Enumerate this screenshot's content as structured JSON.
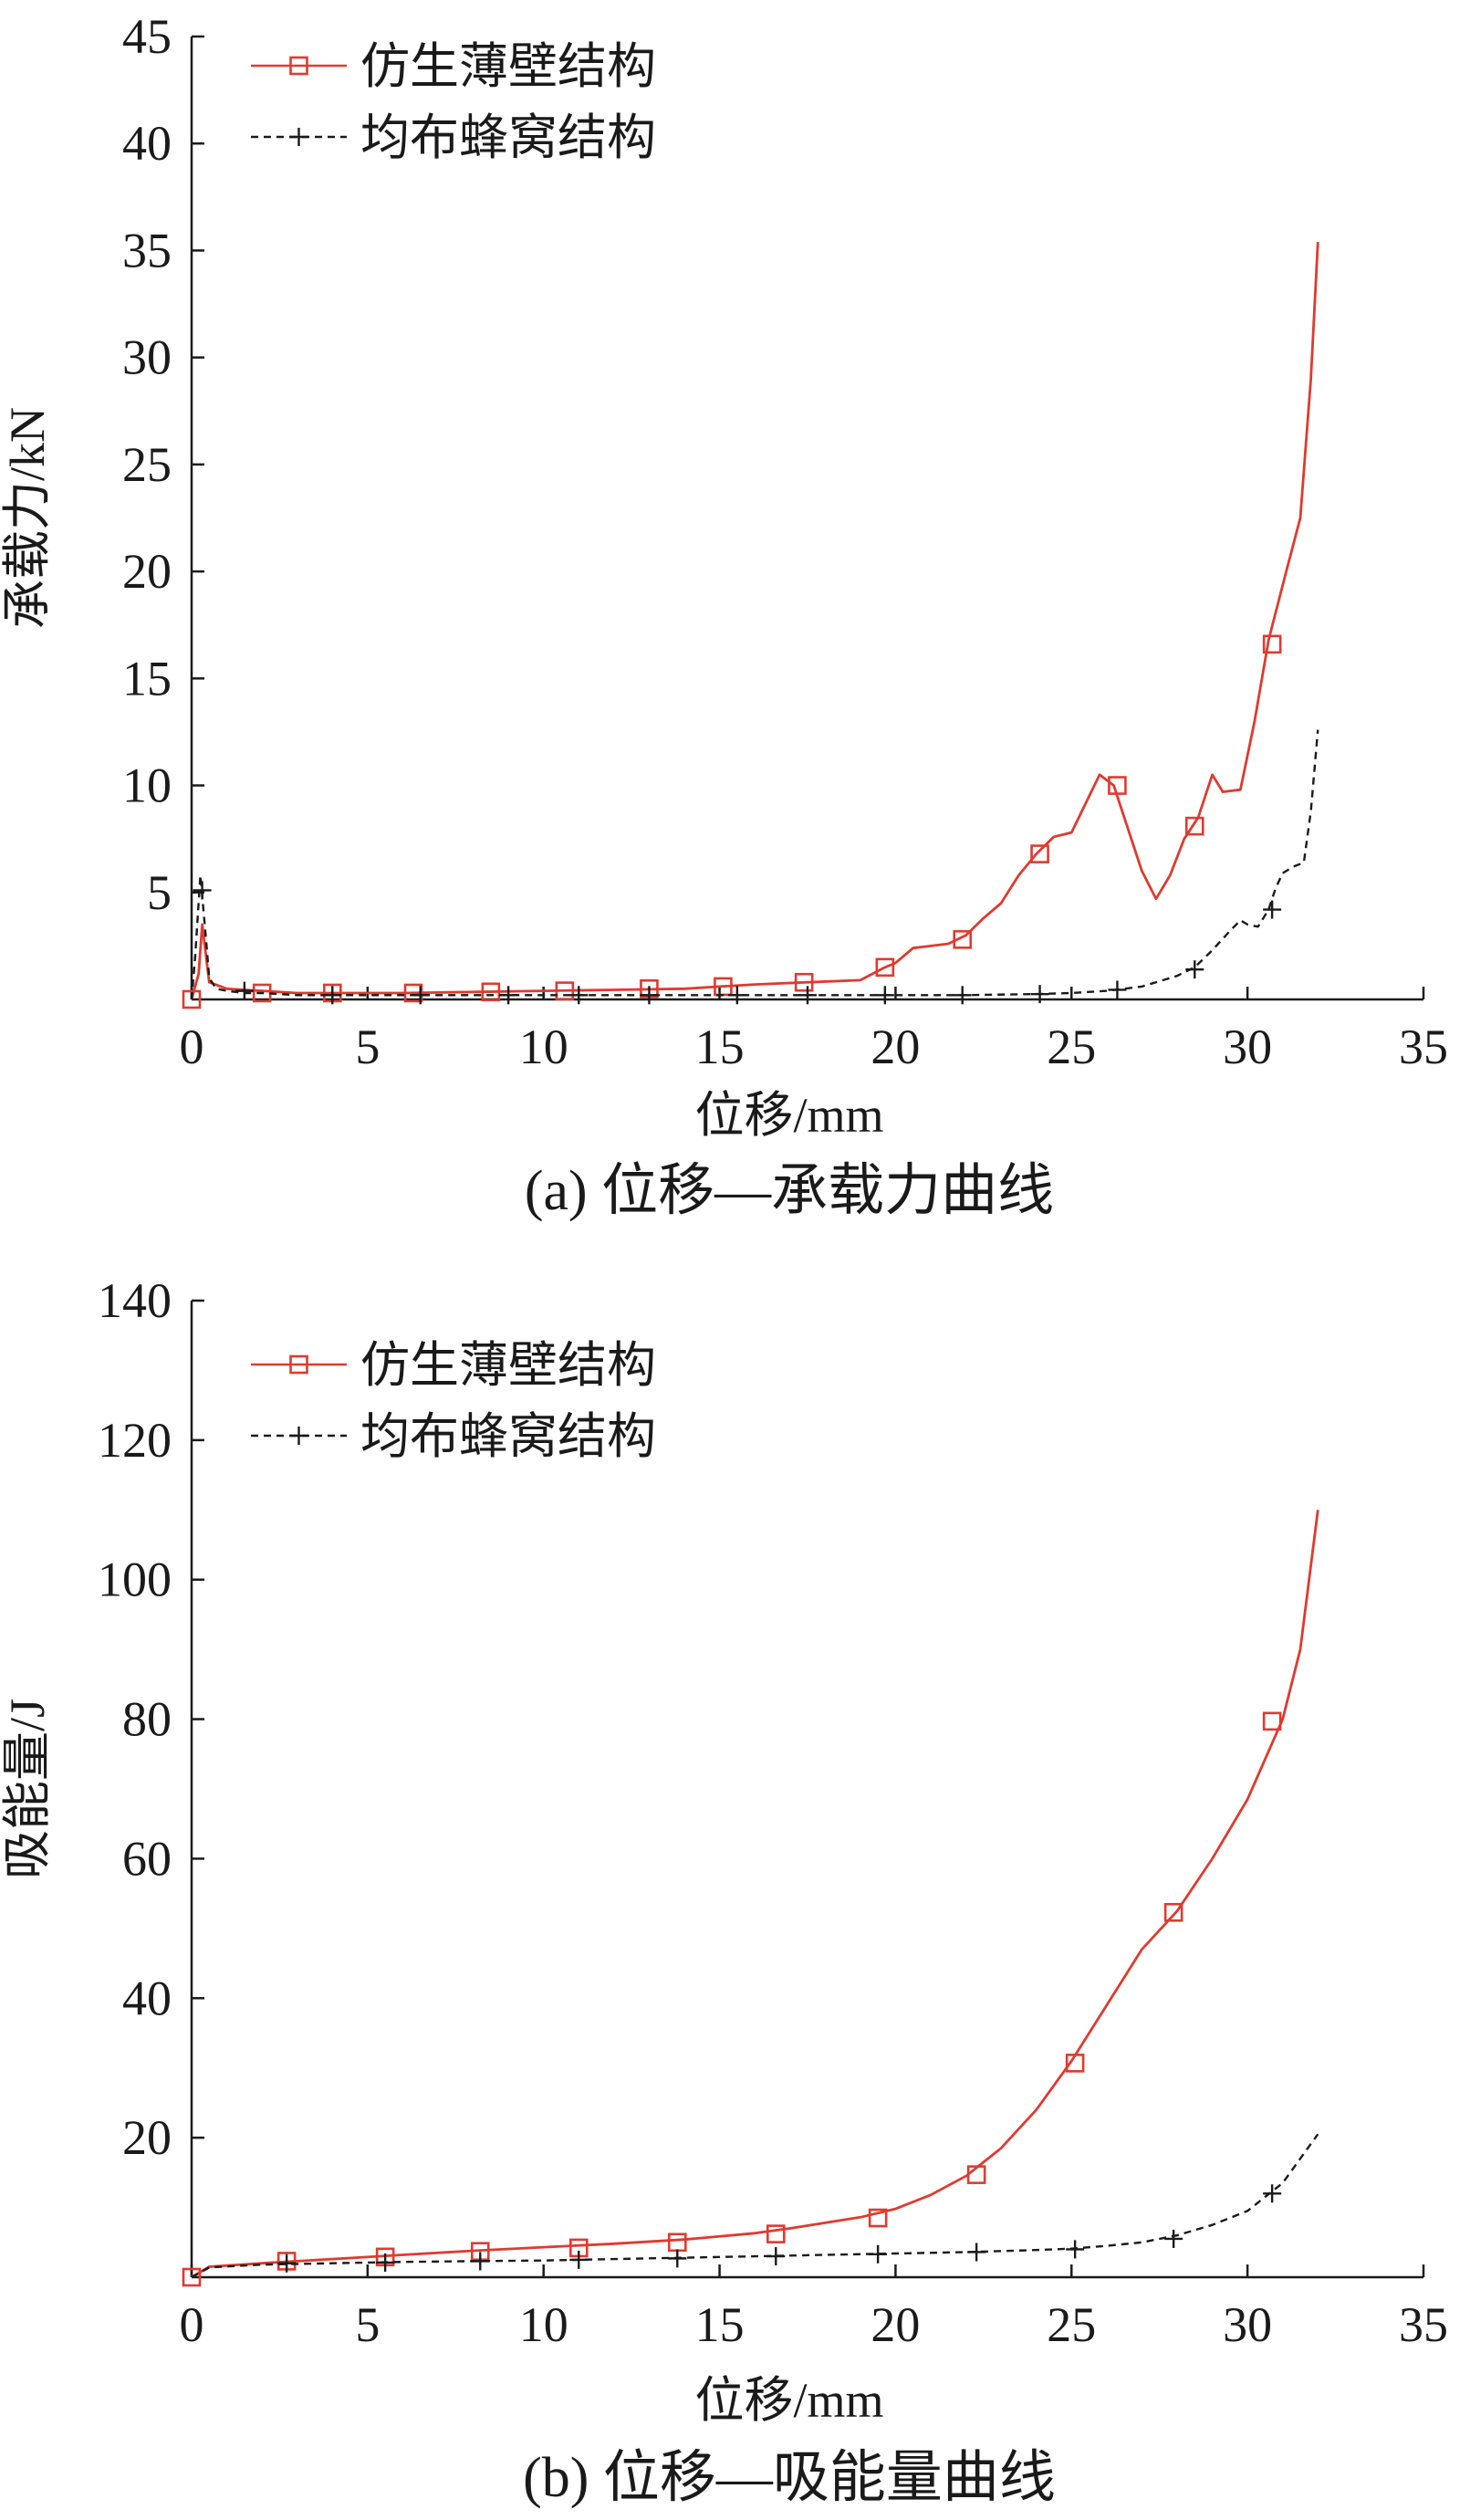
{
  "chart_data": [
    {
      "id": "a",
      "type": "line",
      "caption": "(a)  位移—承载力曲线",
      "xlabel": "位移/mm",
      "ylabel": "承载力/kN",
      "xlim": [
        0,
        35
      ],
      "ylim": [
        0,
        45
      ],
      "xticks": [
        0,
        5,
        10,
        15,
        20,
        25,
        30,
        35
      ],
      "yticks": [
        5,
        10,
        15,
        20,
        25,
        30,
        35,
        40,
        45
      ],
      "grid": false,
      "legend_position": "top-left",
      "series": [
        {
          "name": "仿生薄壁结构",
          "color": "#e03a2f",
          "style": "solid",
          "marker": "square",
          "x": [
            0,
            0.2,
            0.3,
            0.5,
            1,
            2,
            3,
            4,
            6,
            8,
            10,
            12,
            14,
            15,
            16,
            17.5,
            19,
            19.7,
            20,
            20.5,
            21,
            21.5,
            22,
            22.5,
            23,
            23.5,
            24,
            24.5,
            25,
            25.5,
            25.8,
            26.2,
            26.5,
            27,
            27.4,
            27.8,
            28.2,
            28.6,
            29,
            29.3,
            29.8,
            30.2,
            30.6,
            31.1,
            31.5,
            31.8,
            32
          ],
          "y": [
            0,
            1.2,
            3.5,
            0.8,
            0.5,
            0.4,
            0.3,
            0.3,
            0.3,
            0.35,
            0.4,
            0.45,
            0.5,
            0.6,
            0.7,
            0.8,
            0.9,
            1.5,
            1.7,
            2.4,
            2.5,
            2.6,
            3.0,
            3.8,
            4.5,
            5.8,
            6.8,
            7.6,
            7.8,
            9.5,
            10.5,
            10.0,
            8.5,
            6.0,
            4.7,
            5.8,
            7.5,
            8.5,
            10.5,
            9.7,
            9.8,
            13.0,
            16.8,
            20.0,
            22.5,
            29.0,
            35.4
          ],
          "marker_x": [
            0,
            2,
            4,
            6.3,
            8.5,
            10.6,
            13,
            15.1,
            17.4,
            19.7,
            21.9,
            24.1,
            26.3,
            28.5,
            30.7
          ],
          "marker_y": [
            0,
            0.3,
            0.3,
            0.3,
            0.35,
            0.4,
            0.5,
            0.6,
            0.8,
            1.5,
            2.8,
            6.8,
            10.0,
            8.1,
            16.6
          ]
        },
        {
          "name": "均布蜂窝结构",
          "color": "#1a1a1a",
          "style": "dashed",
          "marker": "plus",
          "x": [
            0,
            0.1,
            0.25,
            0.4,
            0.5,
            0.7,
            1,
            1.5,
            2,
            3,
            5,
            8,
            10,
            15,
            20,
            22,
            24,
            25,
            26,
            27,
            28,
            28.5,
            29,
            29.5,
            29.8,
            30,
            30.3,
            30.6,
            30.8,
            31,
            31.3,
            31.6,
            31.8,
            32
          ],
          "y": [
            0,
            2,
            5.8,
            3,
            1,
            0.5,
            0.4,
            0.3,
            0.3,
            0.2,
            0.2,
            0.2,
            0.2,
            0.2,
            0.2,
            0.2,
            0.25,
            0.3,
            0.4,
            0.6,
            1.1,
            1.5,
            2.3,
            3.2,
            3.7,
            3.5,
            3.4,
            4.2,
            5.2,
            5.9,
            6.2,
            6.4,
            8.8,
            12.6
          ],
          "marker_x": [
            0.3,
            1.5,
            4,
            6.5,
            9,
            11,
            13,
            15.5,
            17.5,
            19.7,
            21.9,
            24.1,
            26.3,
            28.5,
            30.7
          ],
          "marker_y": [
            5.1,
            0.4,
            0.2,
            0.2,
            0.2,
            0.2,
            0.2,
            0.2,
            0.2,
            0.2,
            0.2,
            0.25,
            0.45,
            1.4,
            4.2
          ]
        }
      ]
    },
    {
      "id": "b",
      "type": "line",
      "caption": "(b)  位移—吸能量曲线",
      "xlabel": "位移/mm",
      "ylabel": "吸能量/J",
      "xlim": [
        0,
        35
      ],
      "ylim": [
        0,
        140
      ],
      "xticks": [
        0,
        5,
        10,
        15,
        20,
        25,
        30,
        35
      ],
      "yticks": [
        20,
        40,
        60,
        80,
        100,
        120,
        140
      ],
      "grid": false,
      "legend_position": "top-left",
      "series": [
        {
          "name": "仿生薄壁结构",
          "color": "#e03a2f",
          "style": "solid",
          "marker": "square",
          "x": [
            0,
            0.5,
            2,
            4,
            6,
            8,
            10,
            12,
            14,
            16,
            17,
            18,
            19,
            20,
            21,
            22,
            23,
            24,
            25,
            26,
            27,
            28,
            29,
            30,
            31,
            31.5,
            32
          ],
          "y": [
            0,
            1.5,
            2,
            2.6,
            3.2,
            3.8,
            4.3,
            4.8,
            5.4,
            6.3,
            7.0,
            7.8,
            8.6,
            9.8,
            11.8,
            14.5,
            18.5,
            24.0,
            31.0,
            39.0,
            47.0,
            52.5,
            60.0,
            68.5,
            80.0,
            90.0,
            110.0
          ],
          "marker_x": [
            0,
            2.7,
            5.5,
            8.2,
            11,
            13.8,
            16.6,
            19.5,
            22.3,
            25.1,
            27.9,
            30.7
          ],
          "marker_y": [
            0,
            2.3,
            2.9,
            3.7,
            4.2,
            5.0,
            6.2,
            8.5,
            14.7,
            30.7,
            52.3,
            79.7
          ]
        },
        {
          "name": "均布蜂窝结构",
          "color": "#1a1a1a",
          "style": "dashed",
          "marker": "plus",
          "x": [
            0,
            0.5,
            2,
            4,
            6,
            8,
            10,
            12,
            14,
            16,
            18,
            20,
            22,
            24,
            25,
            26,
            27,
            28,
            29,
            30,
            31,
            32
          ],
          "y": [
            0,
            1.4,
            1.8,
            2.0,
            2.2,
            2.3,
            2.4,
            2.6,
            2.8,
            3.0,
            3.2,
            3.4,
            3.6,
            3.9,
            4.1,
            4.5,
            5.0,
            6.0,
            7.5,
            9.5,
            13.5,
            20.5
          ],
          "marker_x": [
            2.7,
            5.5,
            8.2,
            11,
            13.8,
            16.6,
            19.5,
            22.3,
            25.1,
            27.9,
            30.7
          ],
          "marker_y": [
            2.0,
            2.1,
            2.3,
            2.5,
            2.7,
            3.0,
            3.3,
            3.6,
            4.0,
            5.5,
            12.0
          ]
        }
      ]
    }
  ]
}
